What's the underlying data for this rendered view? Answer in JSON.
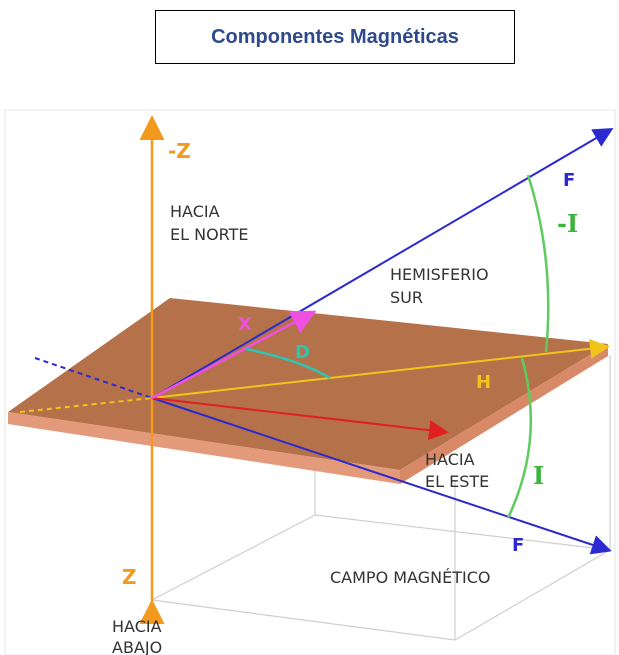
{
  "header": {
    "title": "Componentes Magnéticas"
  },
  "diagram": {
    "labels": {
      "neg_z": "-Z",
      "north_1": "HACIA",
      "north_2": "EL NORTE",
      "hemisphere_1": "HEMISFERIO",
      "hemisphere_2": "SUR",
      "f_upper": "F",
      "neg_i": "-I",
      "x": "X",
      "d": "D",
      "h": "H",
      "east_1": "HACIA",
      "east_2": "EL ESTE",
      "i": "I",
      "f_lower": "F",
      "z": "Z",
      "field": "CAMPO MAGNÉTICO",
      "down_1": "HACIA",
      "down_2": "ABAJO"
    }
  }
}
